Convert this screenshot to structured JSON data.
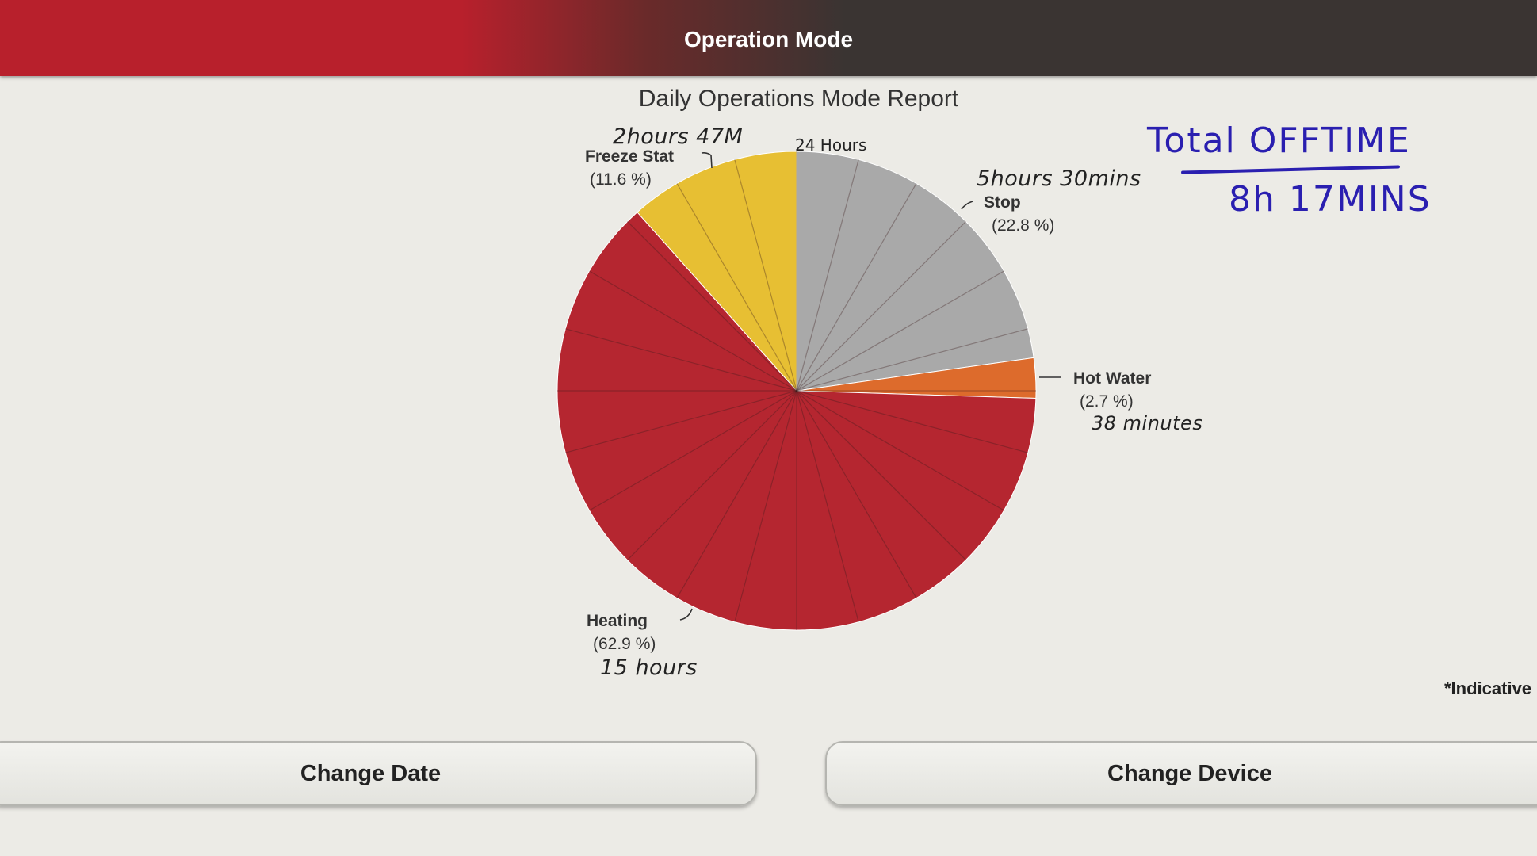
{
  "header": {
    "title": "Operation Mode"
  },
  "chart_data": {
    "type": "pie",
    "title": "Daily Operations Mode Report",
    "slices": [
      {
        "label": "Stop",
        "percent_label": "(22.8 %)",
        "value": 22.8,
        "color": "#a9a9a9"
      },
      {
        "label": "Hot Water",
        "percent_label": "(2.7 %)",
        "value": 2.7,
        "color": "#dd6b2c"
      },
      {
        "label": "Heating",
        "percent_label": "(62.9 %)",
        "value": 62.9,
        "color": "#b52630"
      },
      {
        "label": "Freeze Stat",
        "percent_label": "(11.6 %)",
        "value": 11.6,
        "color": "#e7bf33"
      }
    ],
    "footnote": "*Indicative"
  },
  "annotations": {
    "top": "24 Hours",
    "freeze": "2hours 47M",
    "stop": "5hours 30mins",
    "hot_water": "38 minutes",
    "heating": "15 hours",
    "total_label": "Total OFFTIME",
    "total_value": "8h 17MINS"
  },
  "buttons": {
    "change_date": "Change Date",
    "change_device": "Change Device"
  }
}
